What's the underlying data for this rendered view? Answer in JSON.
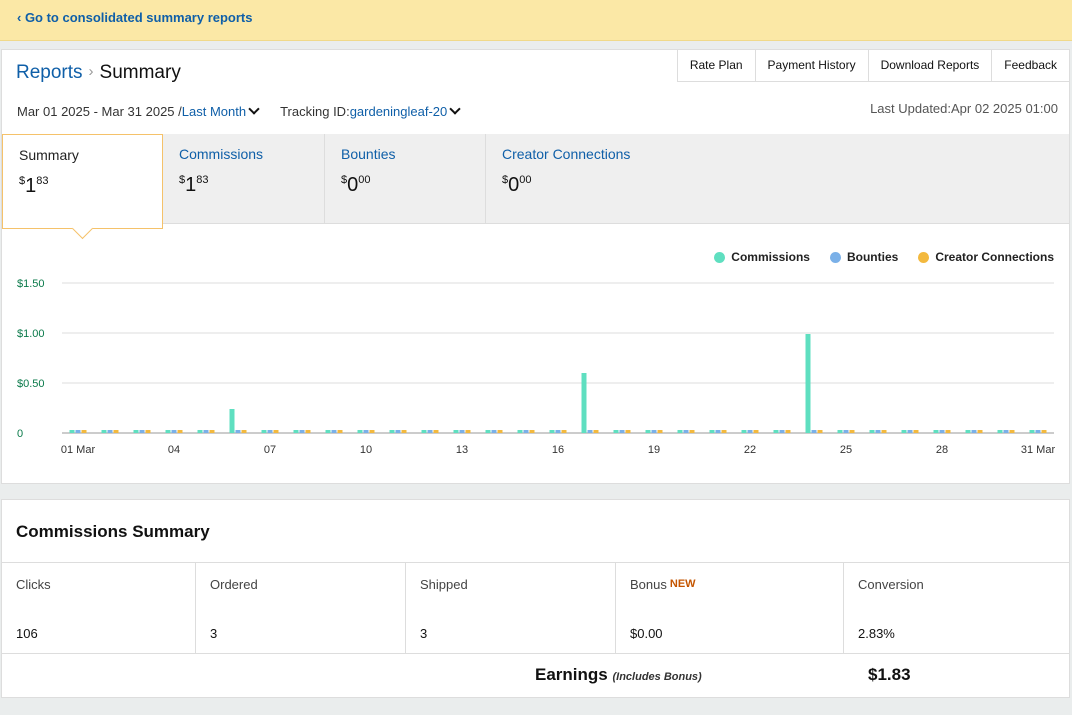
{
  "banner": {
    "link": "‹ Go to consolidated summary reports"
  },
  "breadcrumb": {
    "root": "Reports",
    "separator": "›",
    "current": "Summary"
  },
  "topnav": [
    "Rate Plan",
    "Payment History",
    "Download Reports",
    "Feedback"
  ],
  "filters": {
    "date_range": "Mar 01 2025 - Mar 31 2025 /",
    "period": "Last Month",
    "tracking_label": "Tracking ID:",
    "tracking_id": "gardeningleaf-20",
    "last_updated": "Last Updated:Apr 02 2025 01:00"
  },
  "tabs": [
    {
      "label": "Summary",
      "currency": "$",
      "whole": "1",
      "cents": "83"
    },
    {
      "label": "Commissions",
      "currency": "$",
      "whole": "1",
      "cents": "83"
    },
    {
      "label": "Bounties",
      "currency": "$",
      "whole": "0",
      "cents": "00"
    },
    {
      "label": "Creator Connections",
      "currency": "$",
      "whole": "0",
      "cents": "00"
    }
  ],
  "colors": {
    "commissions": "#5fdfc0",
    "bounties": "#7ab0e8",
    "creator": "#f3b93e",
    "accent": "#f5c26a",
    "link": "#0f5fa8"
  },
  "chart_data": {
    "type": "bar",
    "legend_position": "top-right",
    "grid": true,
    "ylim": [
      0,
      1.5
    ],
    "yticks": [
      0,
      0.5,
      1.0,
      1.5
    ],
    "ytick_labels": [
      "0",
      "$0.50",
      "$1.00",
      "$1.50"
    ],
    "xtick_labels": {
      "1": "01 Mar",
      "4": "04",
      "7": "07",
      "10": "10",
      "13": "13",
      "16": "16",
      "19": "19",
      "22": "22",
      "25": "25",
      "28": "28",
      "31": "31 Mar"
    },
    "categories": [
      "1",
      "2",
      "3",
      "4",
      "5",
      "6",
      "7",
      "8",
      "9",
      "10",
      "11",
      "12",
      "13",
      "14",
      "15",
      "16",
      "17",
      "18",
      "19",
      "20",
      "21",
      "22",
      "23",
      "24",
      "25",
      "26",
      "27",
      "28",
      "29",
      "30",
      "31"
    ],
    "series": [
      {
        "name": "Commissions",
        "values": [
          0,
          0,
          0,
          0,
          0,
          0.24,
          0,
          0,
          0,
          0,
          0,
          0,
          0,
          0,
          0,
          0,
          0.6,
          0,
          0,
          0,
          0,
          0,
          0,
          0.99,
          0,
          0,
          0,
          0,
          0,
          0,
          0
        ]
      },
      {
        "name": "Bounties",
        "values": [
          0,
          0,
          0,
          0,
          0,
          0,
          0,
          0,
          0,
          0,
          0,
          0,
          0,
          0,
          0,
          0,
          0,
          0,
          0,
          0,
          0,
          0,
          0,
          0,
          0,
          0,
          0,
          0,
          0,
          0,
          0
        ]
      },
      {
        "name": "Creator Connections",
        "values": [
          0,
          0,
          0,
          0,
          0,
          0,
          0,
          0,
          0,
          0,
          0,
          0,
          0,
          0,
          0,
          0,
          0,
          0,
          0,
          0,
          0,
          0,
          0,
          0,
          0,
          0,
          0,
          0,
          0,
          0,
          0
        ]
      }
    ]
  },
  "summary": {
    "title": "Commissions Summary",
    "cells": [
      {
        "label": "Clicks",
        "value": "106"
      },
      {
        "label": "Ordered",
        "value": "3"
      },
      {
        "label": "Shipped",
        "value": "3"
      },
      {
        "label": "Bonus",
        "badge": "NEW",
        "value": "$0.00"
      },
      {
        "label": "Conversion",
        "value": "2.83%"
      }
    ],
    "earnings_label": "Earnings",
    "earnings_note": "(Includes Bonus)",
    "earnings_value": "$1.83"
  }
}
